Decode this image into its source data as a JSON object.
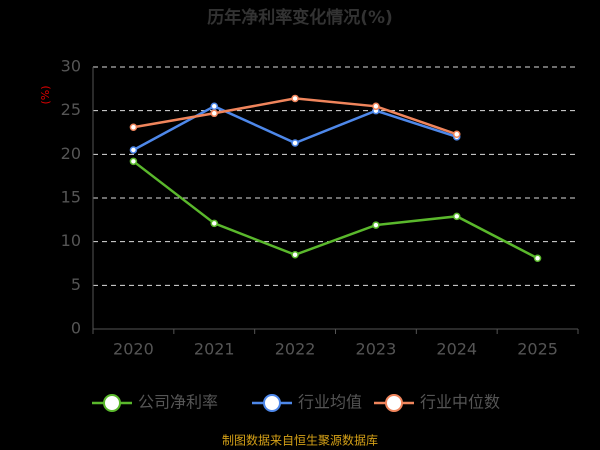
{
  "chart_data": {
    "type": "line",
    "title": "历年净利率变化情况(%)",
    "y_label": "(%)",
    "categories": [
      "2020",
      "2021",
      "2022",
      "2023",
      "2024",
      "2025"
    ],
    "series": [
      {
        "name": "公司净利率",
        "color": "#5ab82c",
        "values": [
          19.2,
          12.1,
          8.5,
          11.9,
          12.9,
          8.1
        ]
      },
      {
        "name": "行业均值",
        "color": "#4e88ea",
        "values": [
          20.5,
          25.5,
          21.3,
          25.0,
          22.0,
          null
        ]
      },
      {
        "name": "行业中位数",
        "color": "#f0855c",
        "values": [
          23.1,
          24.7,
          26.4,
          25.5,
          22.3,
          null
        ]
      }
    ],
    "ylim": [
      0,
      30
    ],
    "yticks": [
      0,
      5,
      10,
      15,
      20,
      25,
      30
    ],
    "grid": true,
    "source": "制图数据来自恒生聚源数据库"
  }
}
